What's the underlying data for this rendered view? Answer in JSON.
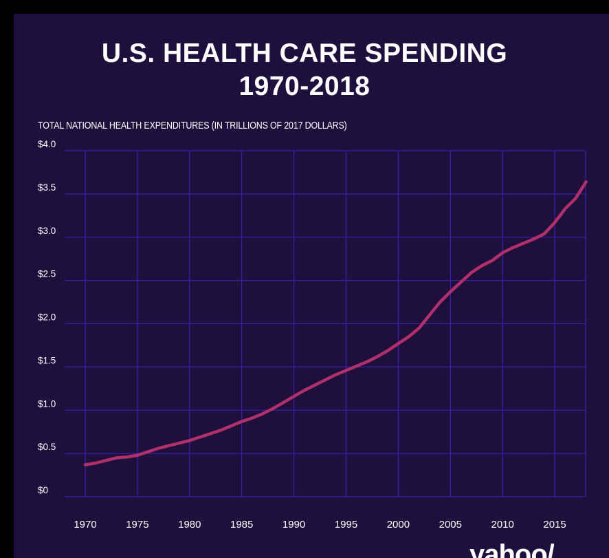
{
  "title_line1": "U.S. HEALTH CARE SPENDING",
  "title_line2": "1970-2018",
  "brand": "yahoo/",
  "colors": {
    "background": "#1f0f3d",
    "grid": "#3b1fa8",
    "line": "#b0306a",
    "text": "#ffffff"
  },
  "chart_data": {
    "type": "line",
    "title": "U.S. HEALTH CARE SPENDING 1970-2018",
    "ylabel": "TOTAL NATIONAL HEALTH EXPENDITURES (IN TRILLIONS OF 2017 DOLLARS)",
    "xlabel": "",
    "xlim": [
      1970,
      2018
    ],
    "ylim": [
      0,
      4.0
    ],
    "grid": true,
    "x_ticks": [
      1970,
      1975,
      1980,
      1985,
      1990,
      1995,
      2000,
      2005,
      2010,
      2015
    ],
    "x_tick_labels": [
      "1970",
      "1975",
      "1980",
      "1985",
      "1990",
      "1995",
      "2000",
      "2005",
      "2010",
      "2015"
    ],
    "y_ticks": [
      0,
      0.5,
      1.0,
      1.5,
      2.0,
      2.5,
      3.0,
      3.5,
      4.0
    ],
    "y_tick_labels": [
      "$0",
      "$0.5",
      "$1.0",
      "$1.5",
      "$2.0",
      "$2.5",
      "$3.0",
      "$3.5",
      "$4.0"
    ],
    "series": [
      {
        "x": [
          1970,
          1971,
          1972,
          1973,
          1974,
          1975,
          1976,
          1977,
          1978,
          1979,
          1980,
          1981,
          1982,
          1983,
          1984,
          1985,
          1986,
          1987,
          1988,
          1989,
          1990,
          1991,
          1992,
          1993,
          1994,
          1995,
          1996,
          1997,
          1998,
          1999,
          2000,
          2001,
          2002,
          2003,
          2004,
          2005,
          2006,
          2007,
          2008,
          2009,
          2010,
          2011,
          2012,
          2013,
          2014,
          2015,
          2016,
          2017,
          2018
        ],
        "y": [
          0.37,
          0.39,
          0.42,
          0.45,
          0.46,
          0.48,
          0.52,
          0.56,
          0.59,
          0.62,
          0.65,
          0.69,
          0.73,
          0.77,
          0.82,
          0.87,
          0.91,
          0.96,
          1.02,
          1.09,
          1.16,
          1.23,
          1.29,
          1.35,
          1.41,
          1.46,
          1.51,
          1.56,
          1.62,
          1.69,
          1.77,
          1.85,
          1.95,
          2.1,
          2.25,
          2.37,
          2.48,
          2.59,
          2.67,
          2.73,
          2.82,
          2.88,
          2.93,
          2.98,
          3.04,
          3.17,
          3.33,
          3.45,
          3.64
        ]
      }
    ]
  }
}
